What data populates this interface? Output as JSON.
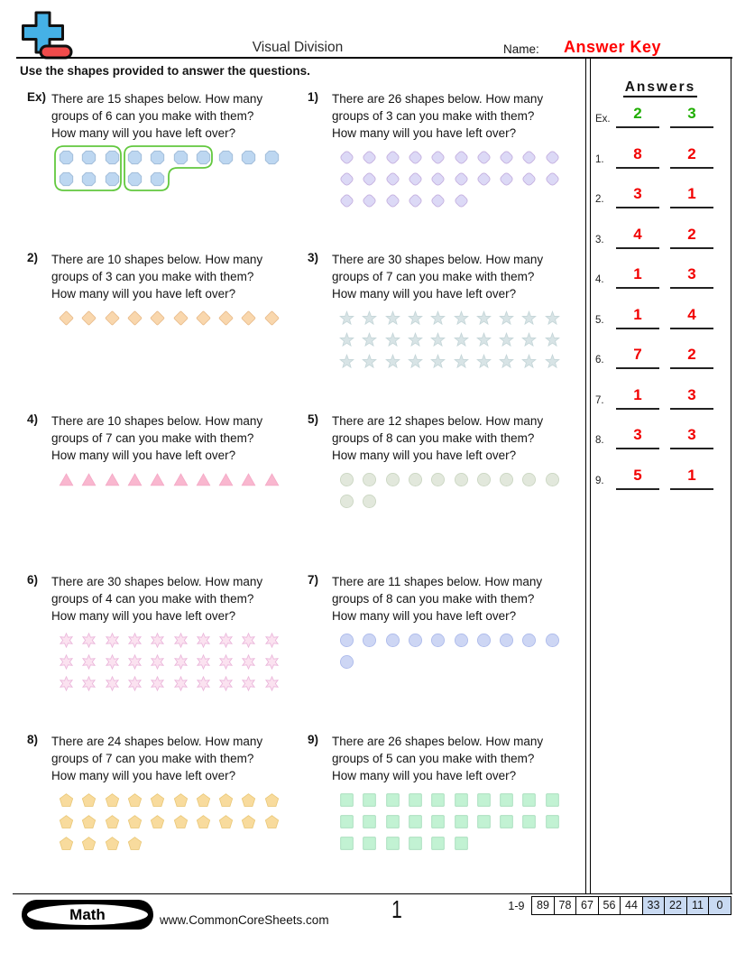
{
  "header": {
    "logo": {
      "name": "plus-minus-logo",
      "plus_color": "#45b1e6",
      "minus_color": "#f14b4b"
    },
    "title": "Visual Division",
    "name_label": "Name:",
    "name_value": "Answer Key",
    "name_value_color": "#ff0000",
    "instructions": "Use the shapes provided to answer the questions."
  },
  "answers_panel": {
    "title": "Answers",
    "green": "#1fae00",
    "red": "#f20000",
    "rows": [
      {
        "label": "Ex.",
        "groups": "2",
        "left_over": "3",
        "color": "green"
      },
      {
        "label": "1.",
        "groups": "8",
        "left_over": "2",
        "color": "red"
      },
      {
        "label": "2.",
        "groups": "3",
        "left_over": "1",
        "color": "red"
      },
      {
        "label": "3.",
        "groups": "4",
        "left_over": "2",
        "color": "red"
      },
      {
        "label": "4.",
        "groups": "1",
        "left_over": "3",
        "color": "red"
      },
      {
        "label": "5.",
        "groups": "1",
        "left_over": "4",
        "color": "red"
      },
      {
        "label": "6.",
        "groups": "7",
        "left_over": "2",
        "color": "red"
      },
      {
        "label": "7.",
        "groups": "1",
        "left_over": "3",
        "color": "red"
      },
      {
        "label": "8.",
        "groups": "3",
        "left_over": "3",
        "color": "red"
      },
      {
        "label": "9.",
        "groups": "5",
        "left_over": "1",
        "color": "red"
      }
    ]
  },
  "problems": [
    {
      "id": "ex",
      "label": "Ex)",
      "lines": [
        "There are 15 shapes below. How many",
        "groups of 6 can you make with them?",
        "How many will you have left over?"
      ],
      "shape": "octagon",
      "fill": "#bdd7f1",
      "stroke": "#9db9d6",
      "rows": [
        10,
        5
      ],
      "grouped": true,
      "group_color": "#62c83e"
    },
    {
      "id": "1",
      "label": "1)",
      "lines": [
        "There are 26 shapes below. How many",
        "groups of 3 can you make with them?",
        "How many will you have left over?"
      ],
      "shape": "rounded-diamond",
      "fill": "#dcd9f6",
      "stroke": "#c3aede",
      "rows": [
        10,
        10,
        6
      ]
    },
    {
      "id": "2",
      "label": "2)",
      "lines": [
        "There are 10 shapes below. How many",
        "groups of 3 can you make with them?",
        "How many will you have left over?"
      ],
      "shape": "diamond",
      "fill": "#f9d7ad",
      "stroke": "#e9bc8b",
      "rows": [
        10
      ]
    },
    {
      "id": "3",
      "label": "3)",
      "lines": [
        "There are 30 shapes below. How many",
        "groups of 7 can you make with them?",
        "How many will you have left over?"
      ],
      "shape": "star5",
      "fill": "#d8e4e6",
      "stroke": "#c4d5d8",
      "rows": [
        10,
        10,
        10
      ]
    },
    {
      "id": "4",
      "label": "4)",
      "lines": [
        "There are 10 shapes below. How many",
        "groups of 7 can you make with them?",
        "How many will you have left over?"
      ],
      "shape": "triangle",
      "fill": "#f9b7cf",
      "stroke": "#f4a9c6",
      "rows": [
        10
      ]
    },
    {
      "id": "5",
      "label": "5)",
      "lines": [
        "There are 12 shapes below. How many",
        "groups of 8 can you make with them?",
        "How many will you have left over?"
      ],
      "shape": "circle",
      "fill": "#e2e8dc",
      "stroke": "#c9d5c0",
      "rows": [
        10,
        2
      ]
    },
    {
      "id": "6",
      "label": "6)",
      "lines": [
        "There are 30 shapes below. How many",
        "groups of 4 can you make with them?",
        "How many will you have left over?"
      ],
      "shape": "star6",
      "fill": "#fbe2f0",
      "stroke": "#eab5da",
      "rows": [
        10,
        10,
        10
      ]
    },
    {
      "id": "7",
      "label": "7)",
      "lines": [
        "There are 11 shapes below. How many",
        "groups of 8 can you make with them?",
        "How many will you have left over?"
      ],
      "shape": "circle",
      "fill": "#cdd6f4",
      "stroke": "#aab8ea",
      "rows": [
        10,
        1
      ]
    },
    {
      "id": "8",
      "label": "8)",
      "lines": [
        "There are 24 shapes below. How many",
        "groups of 7 can you make with them?",
        "How many will you have left over?"
      ],
      "shape": "pentagon",
      "fill": "#f8db9d",
      "stroke": "#eac878",
      "rows": [
        10,
        10,
        4
      ]
    },
    {
      "id": "9",
      "label": "9)",
      "lines": [
        "There are 26 shapes below. How many",
        "groups of 5 can you make with them?",
        "How many will you have left over?"
      ],
      "shape": "square",
      "fill": "#c2f2d3",
      "stroke": "#9fdbb6",
      "rows": [
        10,
        10,
        6
      ]
    }
  ],
  "footer": {
    "brand": "Math",
    "site": "www.CommonCoreSheets.com",
    "page": "1",
    "score_label": "1-9",
    "score_cells": [
      {
        "value": "89",
        "shaded": false
      },
      {
        "value": "78",
        "shaded": false
      },
      {
        "value": "67",
        "shaded": false
      },
      {
        "value": "56",
        "shaded": false
      },
      {
        "value": "44",
        "shaded": false
      },
      {
        "value": "33",
        "shaded": true
      },
      {
        "value": "22",
        "shaded": true
      },
      {
        "value": "11",
        "shaded": true
      },
      {
        "value": "0",
        "shaded": true
      }
    ]
  }
}
